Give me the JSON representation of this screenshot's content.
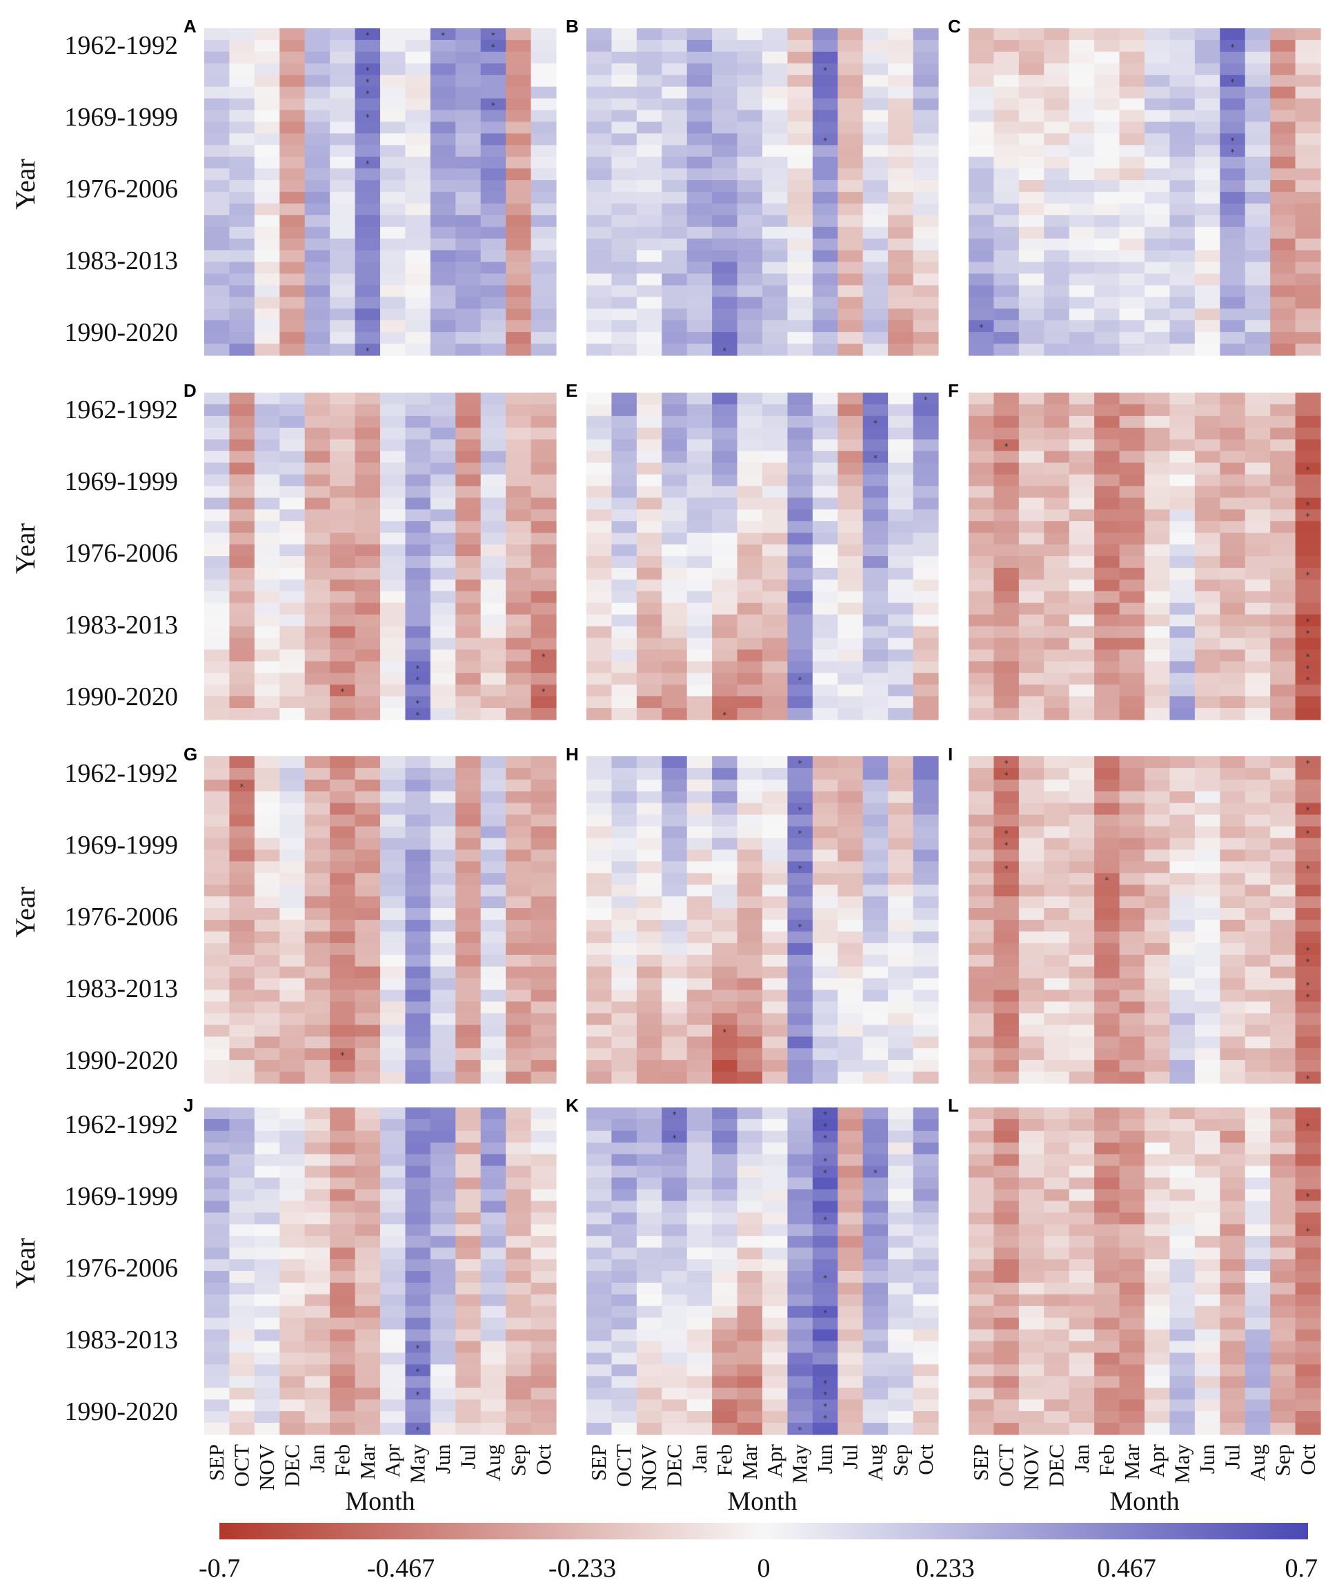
{
  "chart_data": {
    "type": "heatmap",
    "panels": [
      "A",
      "B",
      "C",
      "D",
      "E",
      "F",
      "G",
      "H",
      "I",
      "J",
      "K",
      "L"
    ],
    "y_tick_labels": [
      "1962-1992",
      "1969-1999",
      "1976-2006",
      "1983-2013",
      "1990-2020"
    ],
    "ylabel": "Year",
    "months": [
      "SEP",
      "OCT",
      "NOV",
      "DEC",
      "Jan",
      "Feb",
      "Mar",
      "Apr",
      "May",
      "Jun",
      "Jul",
      "Aug",
      "Sep",
      "Oct"
    ],
    "xlabel": "Month",
    "colorbar": {
      "min": -0.7,
      "max": 0.7,
      "ticks": [
        "-0.7",
        "-0.467",
        "-0.233",
        "0",
        "0.233",
        "0.467",
        "0.7"
      ],
      "low_color": "#b2382b",
      "mid_color": "#f7f7f7",
      "high_color": "#4a48b4"
    },
    "significance_marker": "*"
  }
}
